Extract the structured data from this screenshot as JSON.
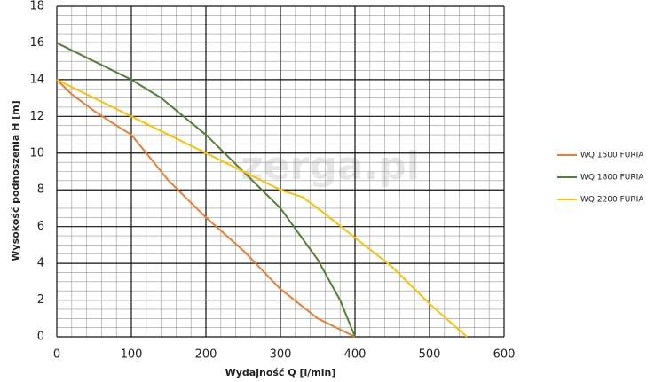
{
  "chart_data": {
    "type": "line",
    "xlabel": "Wydajność Q [l/min]",
    "ylabel": "Wysokość podnoszenia H [m]",
    "watermark": "zerga.pl",
    "xlim": [
      0,
      600
    ],
    "xticks": [
      0,
      100,
      200,
      300,
      400,
      500,
      600
    ],
    "ylim": [
      0,
      18
    ],
    "yticks": [
      0,
      2,
      4,
      6,
      8,
      10,
      12,
      14,
      16,
      18
    ],
    "grid": true,
    "legend": "right",
    "series": [
      {
        "name": "WQ 1500 FURIA",
        "color": "#ed7d31",
        "x": [
          0,
          20,
          50,
          80,
          100,
          120,
          150,
          200,
          250,
          300,
          350,
          380,
          400
        ],
        "values": [
          14,
          13.2,
          12.3,
          11.5,
          11,
          10,
          8.5,
          6.5,
          4.7,
          2.6,
          1,
          0.4,
          0
        ]
      },
      {
        "name": "WQ 1800 FURIA",
        "color": "#548235",
        "x": [
          0,
          50,
          100,
          140,
          200,
          250,
          300,
          350,
          380,
          400
        ],
        "values": [
          16,
          15,
          14,
          13,
          11,
          9,
          7,
          4.2,
          2,
          0
        ]
      },
      {
        "name": "WQ 2200 FURIA",
        "color": "#ffc000",
        "x": [
          0,
          50,
          100,
          150,
          200,
          250,
          300,
          330,
          350,
          400,
          450,
          500,
          550
        ],
        "values": [
          14,
          13,
          12,
          11,
          10,
          9,
          8,
          7.6,
          7,
          5.4,
          3.8,
          1.8,
          0
        ]
      }
    ]
  }
}
